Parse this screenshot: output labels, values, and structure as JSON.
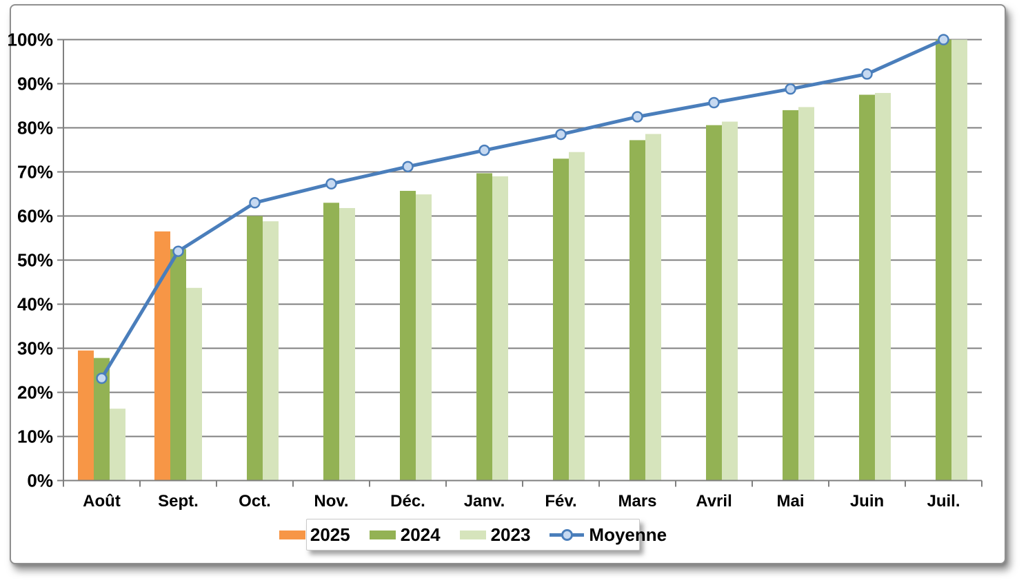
{
  "chart_data": {
    "type": "bar",
    "title": "",
    "categories": [
      "Août",
      "Sept.",
      "Oct.",
      "Nov.",
      "Déc.",
      "Janv.",
      "Fév.",
      "Mars",
      "Avril",
      "Mai",
      "Juin",
      "Juil."
    ],
    "series": [
      {
        "name": "2025",
        "type": "bar",
        "color": "#F79646",
        "values": [
          29.5,
          56.5,
          null,
          null,
          null,
          null,
          null,
          null,
          null,
          null,
          null,
          null
        ]
      },
      {
        "name": "2024",
        "type": "bar",
        "color": "#93B254",
        "values": [
          27.8,
          52.5,
          60,
          63,
          65.7,
          69.7,
          73,
          77.2,
          80.6,
          84,
          87.5,
          100
        ]
      },
      {
        "name": "2023",
        "type": "bar",
        "color": "#D6E4BC",
        "values": [
          16.3,
          43.7,
          58.8,
          61.8,
          64.9,
          69,
          74.5,
          78.6,
          81.4,
          84.7,
          87.9,
          100
        ]
      },
      {
        "name": "Moyenne",
        "type": "line",
        "color": "#4A7EBB",
        "marker_fill": "#C6D9F1",
        "values": [
          23.2,
          52,
          63,
          67.3,
          71.2,
          74.9,
          78.5,
          82.5,
          85.7,
          88.8,
          92.2,
          100
        ]
      }
    ],
    "xlabel": "",
    "ylabel": "",
    "ylim": [
      0,
      100
    ],
    "ytick_step": 10,
    "ytick_labels": [
      "0%",
      "10%",
      "20%",
      "30%",
      "40%",
      "50%",
      "60%",
      "70%",
      "80%",
      "90%",
      "100%"
    ],
    "grid": true,
    "legend_position": "bottom",
    "colors": {
      "grid": "#7F7F7F",
      "axis": "#7F7F7F",
      "text": "#000000"
    }
  }
}
